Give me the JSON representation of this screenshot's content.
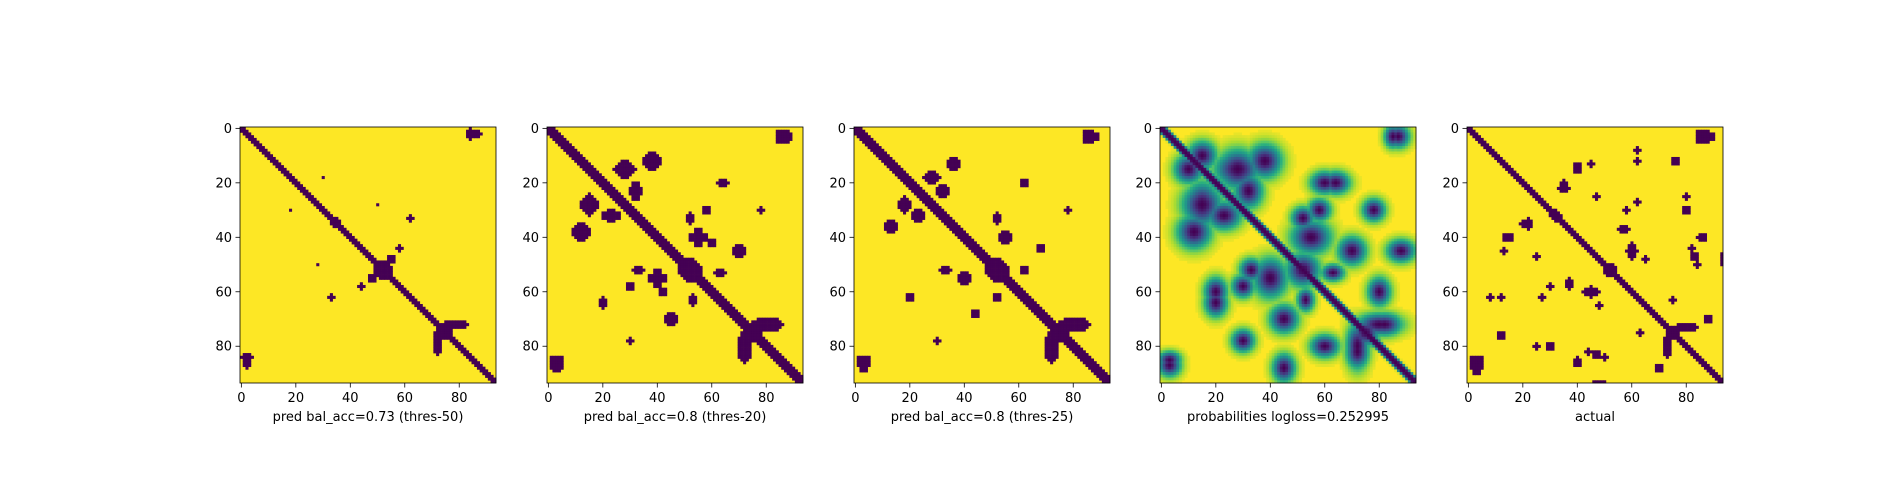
{
  "chart_data": [
    {
      "type": "heatmap",
      "title": "",
      "xlabel": "pred bal_acc=0.73 (thres-50)",
      "ylabel": "",
      "size": 94,
      "xlim": [
        0,
        94
      ],
      "ylim": [
        94,
        0
      ],
      "xticks": [
        0,
        20,
        40,
        60,
        80
      ],
      "yticks": [
        0,
        20,
        40,
        60,
        80
      ],
      "xticklabels": [
        "0",
        "20",
        "40",
        "60",
        "80"
      ],
      "yticklabels": [
        "0",
        "20",
        "40",
        "60",
        "80"
      ],
      "grid": false,
      "values_kind": "binary",
      "diag_halfwidth": 1.7,
      "blobs": [
        [
          84,
          2,
          1.5,
          2.5
        ],
        [
          52,
          52,
          4,
          4
        ],
        [
          75,
          75,
          3.5,
          3.5
        ],
        [
          72,
          78,
          2,
          6
        ],
        [
          80,
          72,
          4,
          2
        ],
        [
          48,
          55,
          2,
          2
        ],
        [
          58,
          44,
          1.5,
          2
        ],
        [
          34,
          35,
          1.5,
          1.5
        ],
        [
          30,
          18,
          1,
          1
        ],
        [
          62,
          33,
          1.5,
          1.5
        ],
        [
          2,
          86,
          1.5,
          2.5
        ],
        [
          28,
          50,
          1,
          1
        ]
      ]
    },
    {
      "type": "heatmap",
      "title": "",
      "xlabel": "pred bal_acc=0.8 (thres-20)",
      "ylabel": "",
      "size": 94,
      "xlim": [
        0,
        94
      ],
      "ylim": [
        94,
        0
      ],
      "xticks": [
        0,
        20,
        40,
        60,
        80
      ],
      "yticks": [
        0,
        20,
        40,
        60,
        80
      ],
      "xticklabels": [
        "0",
        "20",
        "40",
        "60",
        "80"
      ],
      "yticklabels": [
        "0",
        "20",
        "40",
        "60",
        "80"
      ],
      "grid": false,
      "values_kind": "binary",
      "diag_halfwidth": 2.6,
      "blobs": [
        [
          85,
          3,
          2,
          3.5
        ],
        [
          3,
          87,
          3,
          3
        ],
        [
          52,
          52,
          5,
          5
        ],
        [
          75,
          75,
          4.5,
          4.5
        ],
        [
          72,
          80,
          3,
          7
        ],
        [
          82,
          72,
          5,
          3
        ],
        [
          40,
          55,
          3,
          4
        ],
        [
          55,
          40,
          3,
          4
        ],
        [
          15,
          28,
          4,
          4
        ],
        [
          28,
          15,
          5,
          3
        ],
        [
          32,
          23,
          3,
          4
        ],
        [
          12,
          38,
          4,
          4
        ],
        [
          42,
          60,
          2,
          2
        ],
        [
          52,
          33,
          2,
          3
        ],
        [
          63,
          53,
          3,
          2
        ],
        [
          64,
          20,
          3,
          2
        ],
        [
          78,
          30,
          1.5,
          1.5
        ],
        [
          45,
          70,
          3,
          3
        ],
        [
          30,
          58,
          2,
          2
        ]
      ]
    },
    {
      "type": "heatmap",
      "title": "",
      "xlabel": "pred bal_acc=0.8 (thres-25)",
      "ylabel": "",
      "size": 94,
      "xlim": [
        0,
        94
      ],
      "ylim": [
        94,
        0
      ],
      "xticks": [
        0,
        20,
        40,
        60,
        80
      ],
      "yticks": [
        0,
        20,
        40,
        60,
        80
      ],
      "xticklabels": [
        "0",
        "20",
        "40",
        "60",
        "80"
      ],
      "yticklabels": [
        "0",
        "20",
        "40",
        "60",
        "80"
      ],
      "grid": false,
      "values_kind": "binary",
      "diag_halfwidth": 2.4,
      "blobs": [
        [
          85,
          3,
          2,
          3.5
        ],
        [
          3,
          87,
          2.5,
          3
        ],
        [
          52,
          52,
          5,
          5
        ],
        [
          75,
          75,
          4.5,
          4.5
        ],
        [
          72,
          80,
          3,
          7
        ],
        [
          82,
          72,
          5,
          3
        ],
        [
          40,
          55,
          3,
          3
        ],
        [
          55,
          40,
          3,
          3
        ],
        [
          18,
          28,
          3,
          3
        ],
        [
          28,
          18,
          4,
          2
        ],
        [
          32,
          23,
          3,
          3
        ],
        [
          13,
          36,
          3,
          3
        ],
        [
          52,
          33,
          2,
          3
        ],
        [
          62,
          52,
          2,
          2
        ],
        [
          62,
          20,
          2,
          2
        ],
        [
          78,
          30,
          1.5,
          1.5
        ],
        [
          44,
          68,
          2,
          2
        ]
      ]
    },
    {
      "type": "heatmap",
      "title": "",
      "xlabel": "probabilities logloss=0.252995",
      "ylabel": "",
      "size": 94,
      "xlim": [
        0,
        94
      ],
      "ylim": [
        94,
        0
      ],
      "xticks": [
        0,
        20,
        40,
        60,
        80
      ],
      "yticks": [
        0,
        20,
        40,
        60,
        80
      ],
      "xticklabels": [
        "0",
        "20",
        "40",
        "60",
        "80"
      ],
      "yticklabels": [
        "0",
        "20",
        "40",
        "60",
        "80"
      ],
      "grid": false,
      "values_kind": "continuous",
      "vrange": [
        0,
        1
      ],
      "diag_halfwidth": 2.2,
      "blobs": [
        [
          85,
          3,
          3,
          4
        ],
        [
          3,
          87,
          4,
          4
        ],
        [
          52,
          52,
          6,
          6
        ],
        [
          75,
          75,
          5,
          5
        ],
        [
          72,
          80,
          4,
          8
        ],
        [
          82,
          72,
          6,
          4
        ],
        [
          40,
          55,
          6,
          7
        ],
        [
          55,
          40,
          7,
          6
        ],
        [
          15,
          28,
          7,
          7
        ],
        [
          28,
          15,
          8,
          6
        ],
        [
          32,
          23,
          5,
          6
        ],
        [
          12,
          38,
          6,
          6
        ],
        [
          52,
          33,
          4,
          4
        ],
        [
          63,
          53,
          4,
          3
        ],
        [
          64,
          20,
          5,
          4
        ],
        [
          78,
          30,
          4,
          4
        ],
        [
          45,
          70,
          5,
          5
        ],
        [
          30,
          58,
          4,
          4
        ],
        [
          20,
          60,
          4,
          5
        ],
        [
          60,
          80,
          5,
          4
        ],
        [
          10,
          15,
          5,
          5
        ],
        [
          88,
          45,
          5,
          4
        ]
      ]
    },
    {
      "type": "heatmap",
      "title": "",
      "xlabel": "actual",
      "ylabel": "",
      "size": 94,
      "xlim": [
        0,
        94
      ],
      "ylim": [
        94,
        0
      ],
      "xticks": [
        0,
        20,
        40,
        60,
        80
      ],
      "yticks": [
        0,
        20,
        40,
        60,
        80
      ],
      "xticklabels": [
        "0",
        "20",
        "40",
        "60",
        "80"
      ],
      "yticklabels": [
        "0",
        "20",
        "40",
        "60",
        "80"
      ],
      "grid": false,
      "values_kind": "binary",
      "diag_halfwidth": 1.6,
      "blobs": [
        [
          85,
          3,
          2,
          3.5
        ],
        [
          3,
          87,
          3,
          4
        ],
        [
          32,
          32,
          2.5,
          2.5
        ],
        [
          52,
          52,
          3,
          3
        ],
        [
          75,
          75,
          3,
          3
        ],
        [
          73,
          80,
          2,
          5
        ],
        [
          60,
          45,
          2,
          4
        ],
        [
          37,
          57,
          2,
          3
        ],
        [
          45,
          60,
          2,
          3
        ],
        [
          35,
          22,
          3,
          2
        ],
        [
          40,
          15,
          2,
          2
        ],
        [
          14,
          40,
          2,
          2
        ],
        [
          13,
          45,
          1.5,
          2
        ],
        [
          58,
          30,
          1.5,
          2
        ],
        [
          62,
          12,
          1.5,
          2
        ],
        [
          62,
          27,
          1.5,
          1.5
        ],
        [
          65,
          48,
          1.5,
          2
        ],
        [
          80,
          25,
          1.5,
          1.5
        ],
        [
          75,
          63,
          1.5,
          2
        ],
        [
          86,
          40,
          2,
          2
        ],
        [
          83,
          47,
          2,
          2
        ],
        [
          25,
          47,
          1.5,
          1.5
        ],
        [
          20,
          35,
          1.5,
          1.5
        ],
        [
          30,
          80,
          2,
          2
        ],
        [
          8,
          62,
          1.5,
          2
        ],
        [
          88,
          70,
          2,
          2
        ],
        [
          76,
          12,
          2,
          2
        ],
        [
          93,
          48,
          1,
          3
        ],
        [
          40,
          85,
          1.5,
          1.5
        ],
        [
          44,
          82,
          1.5,
          1.5
        ],
        [
          50,
          84,
          1.5,
          1.5
        ]
      ]
    }
  ]
}
